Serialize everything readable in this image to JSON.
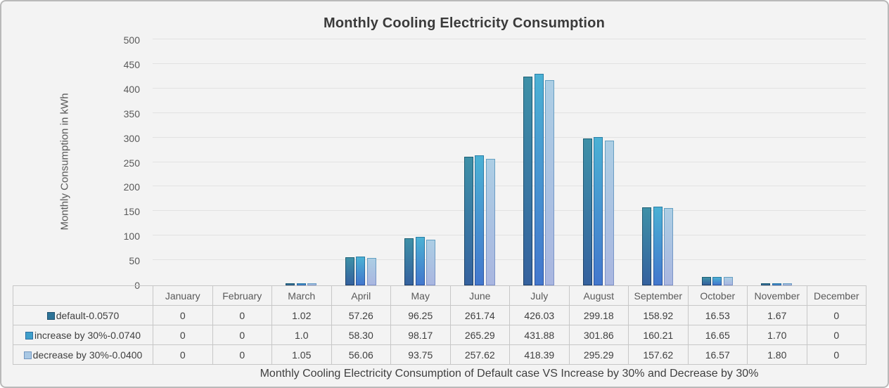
{
  "chart_data": {
    "type": "bar",
    "title": "Monthly Cooling Electricity Consumption",
    "xlabel": "",
    "ylabel": "Monthly Consumption in kWh",
    "caption": "Monthly Cooling Electricity Consumption of Default case VS Increase by 30% and Decrease by 30%",
    "ylim": [
      0,
      500
    ],
    "ytick_step": 50,
    "yticks": [
      "500",
      "450",
      "400",
      "350",
      "300",
      "250",
      "200",
      "150",
      "100",
      "50",
      "0"
    ],
    "grid": true,
    "legend_position": "data-table-left",
    "categories": [
      "January",
      "February",
      "March",
      "April",
      "May",
      "June",
      "July",
      "August",
      "September",
      "October",
      "November",
      "December"
    ],
    "series": [
      {
        "key": "default",
        "name": "default-0.0570",
        "values": [
          0,
          0,
          1.02,
          57.26,
          96.25,
          261.74,
          426.03,
          299.18,
          158.92,
          16.53,
          1.67,
          0
        ],
        "display": [
          "0",
          "0",
          "1.02",
          "57.26",
          "96.25",
          "261.74",
          "426.03",
          "299.18",
          "158.92",
          "16.53",
          "1.67",
          "0"
        ],
        "swatch": "#2d7397",
        "swatch_border": "#1e5170",
        "fill_top": "#3e90a7",
        "fill_bottom": "#35619e",
        "border_top": "#1c6075",
        "border_bottom": "#1c3e66"
      },
      {
        "key": "increase-by-30",
        "name": "increase by 30%-0.0740",
        "values": [
          0,
          0,
          1.0,
          58.3,
          98.17,
          265.29,
          431.88,
          301.86,
          160.21,
          16.65,
          1.7,
          0
        ],
        "display": [
          "0",
          "0",
          "1.0",
          "58.30",
          "98.17",
          "265.29",
          "431.88",
          "301.86",
          "160.21",
          "16.65",
          "1.70",
          "0"
        ],
        "swatch": "#3f9fca",
        "swatch_border": "#2b6fa3",
        "fill_top": "#4bb1d4",
        "fill_bottom": "#4377cd",
        "border_top": "#2a7fa6",
        "border_bottom": "#2a529f"
      },
      {
        "key": "decrease-by-30",
        "name": "decrease by 30%-0.0400",
        "values": [
          0,
          0,
          1.05,
          56.06,
          93.75,
          257.62,
          418.39,
          295.29,
          157.62,
          16.57,
          1.8,
          0
        ],
        "display": [
          "0",
          "0",
          "1.05",
          "56.06",
          "93.75",
          "257.62",
          "418.39",
          "295.29",
          "157.62",
          "16.57",
          "1.80",
          "0"
        ],
        "swatch": "#a9c8e4",
        "swatch_border": "#7396bf",
        "fill_top": "#accee4",
        "fill_bottom": "#a9b6e0",
        "border_top": "#64a0c2",
        "border_bottom": "#7e92c9"
      }
    ]
  },
  "colors": {
    "background": "#f3f3f3",
    "figure_border": "#b9b9b9",
    "grid": "#e2e2e2",
    "table_border": "#c7c7c7",
    "title_text": "#3a3a3a",
    "axis_text": "#595959",
    "value_text": "#3f3f3f"
  }
}
